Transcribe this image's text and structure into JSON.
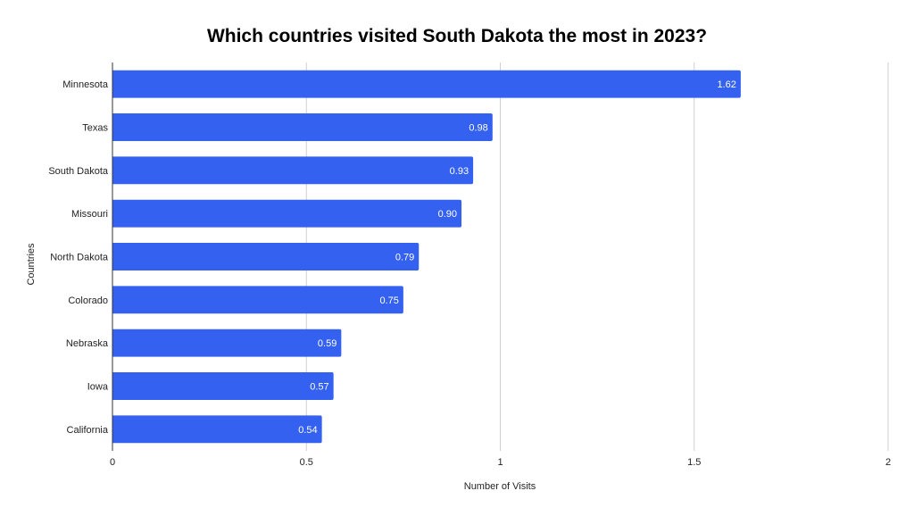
{
  "chart_data": {
    "type": "bar",
    "orientation": "horizontal",
    "title": "Which countries visited South Dakota the most in 2023?",
    "xlabel": "Number of Visits",
    "ylabel": "Countries",
    "categories": [
      "Minnesota",
      "Texas",
      "South Dakota",
      "Missouri",
      "North Dakota",
      "Colorado",
      "Nebraska",
      "Iowa",
      "California"
    ],
    "values": [
      1.62,
      0.98,
      0.93,
      0.9,
      0.79,
      0.75,
      0.59,
      0.57,
      0.54
    ],
    "value_labels": [
      "1.62",
      "0.98",
      "0.93",
      "0.90",
      "0.79",
      "0.75",
      "0.59",
      "0.57",
      "0.54"
    ],
    "xlim": [
      0,
      2
    ],
    "xticks": [
      0,
      0.5,
      1,
      1.5,
      2
    ],
    "xtick_labels": [
      "0",
      "0.5",
      "1",
      "1.5",
      "2"
    ],
    "grid": "vertical",
    "legend": "none",
    "bar_color": "#3461f0"
  }
}
